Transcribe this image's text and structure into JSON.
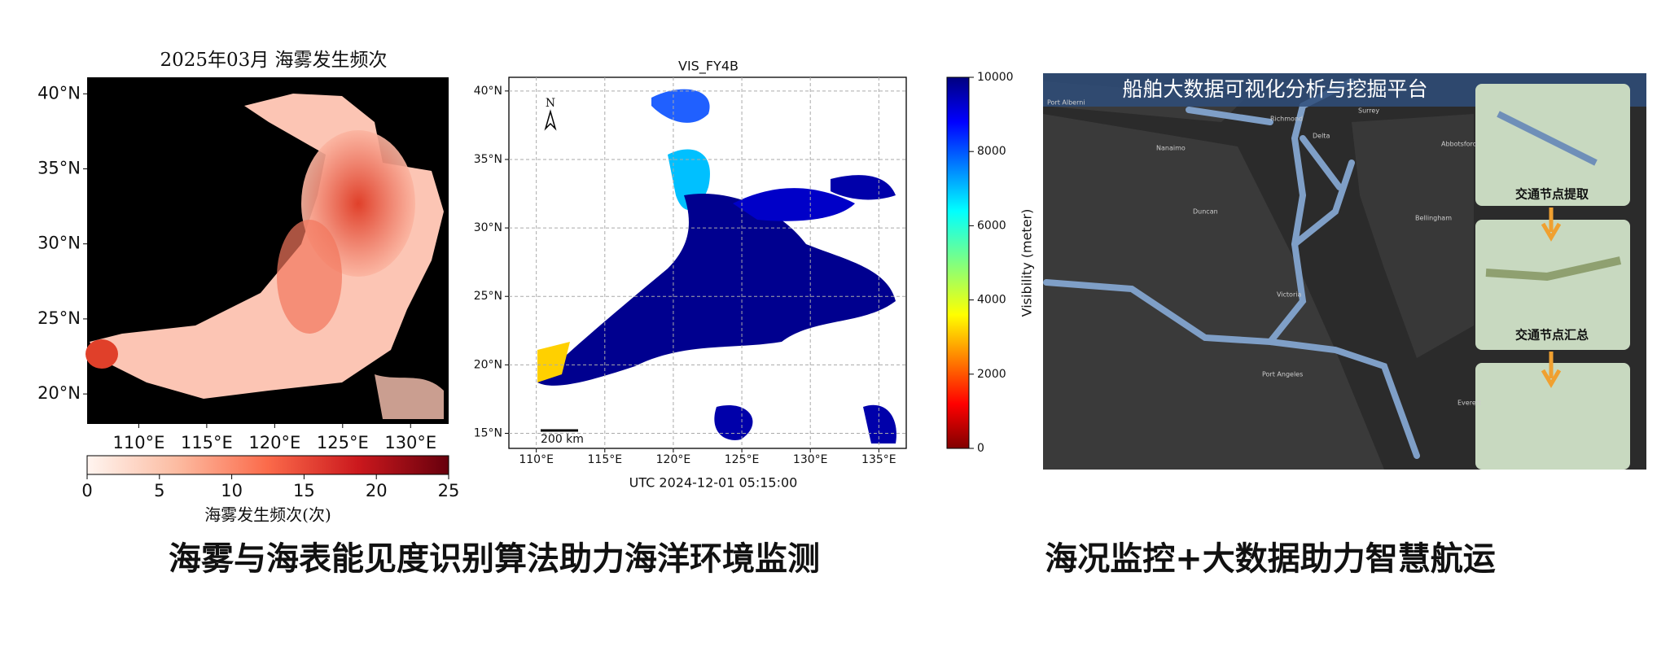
{
  "left_panel": {
    "title": "2025年03月 海雾发生频次",
    "lat_range": [
      18,
      41.1
    ],
    "lon_range": [
      106.2,
      132.8
    ],
    "lat_ticks": [
      {
        "value": 40,
        "label": "40°N"
      },
      {
        "value": 35,
        "label": "35°N"
      },
      {
        "value": 30,
        "label": "30°N"
      },
      {
        "value": 25,
        "label": "25°N"
      },
      {
        "value": 20,
        "label": "20°N"
      }
    ],
    "lon_ticks": [
      {
        "value": 110,
        "label": "110°E"
      },
      {
        "value": 115,
        "label": "115°E"
      },
      {
        "value": 120,
        "label": "120°E"
      },
      {
        "value": 125,
        "label": "125°E"
      },
      {
        "value": 130,
        "label": "130°E"
      }
    ],
    "colorbar": {
      "label": "海雾发生频次(次)",
      "range": [
        0,
        25
      ],
      "ticks": [
        0,
        5,
        10,
        15,
        20,
        25
      ]
    }
  },
  "middle_panel": {
    "title": "VIS_FY4B",
    "timestamp": "UTC 2024-12-01 05:15:00",
    "north_label": "N",
    "scale_label": "200 km",
    "lat_range": [
      13.9,
      41.0
    ],
    "lon_range": [
      108.0,
      137.0
    ],
    "lat_ticks": [
      {
        "value": 40,
        "label": "40°N"
      },
      {
        "value": 35,
        "label": "35°N"
      },
      {
        "value": 30,
        "label": "30°N"
      },
      {
        "value": 25,
        "label": "25°N"
      },
      {
        "value": 20,
        "label": "20°N"
      },
      {
        "value": 15,
        "label": "15°N"
      }
    ],
    "lon_ticks": [
      {
        "value": 110,
        "label": "110°E"
      },
      {
        "value": 115,
        "label": "115°E"
      },
      {
        "value": 120,
        "label": "120°E"
      },
      {
        "value": 125,
        "label": "125°E"
      },
      {
        "value": 130,
        "label": "130°E"
      },
      {
        "value": 135,
        "label": "135°E"
      }
    ],
    "colorbar": {
      "label": "Visibility (meter)",
      "range": [
        0,
        10000
      ],
      "ticks": [
        0,
        2000,
        4000,
        6000,
        8000,
        10000
      ]
    }
  },
  "right_panel": {
    "header": "船舶大数据可视化分析与挖掘平台",
    "step_labels": [
      "交通节点提取",
      "交通节点汇总"
    ],
    "place_labels": [
      "Port Alberni",
      "Nanaimo",
      "Richmond",
      "Surrey",
      "Delta",
      "Abbotsford",
      "Duncan",
      "Bellingham",
      "Victoria",
      "Port Angeles",
      "Everett"
    ]
  },
  "captions": [
    "海雾与海表能见度识别算法助力海洋环境监测",
    "海况监控+大数据助力智慧航运"
  ]
}
